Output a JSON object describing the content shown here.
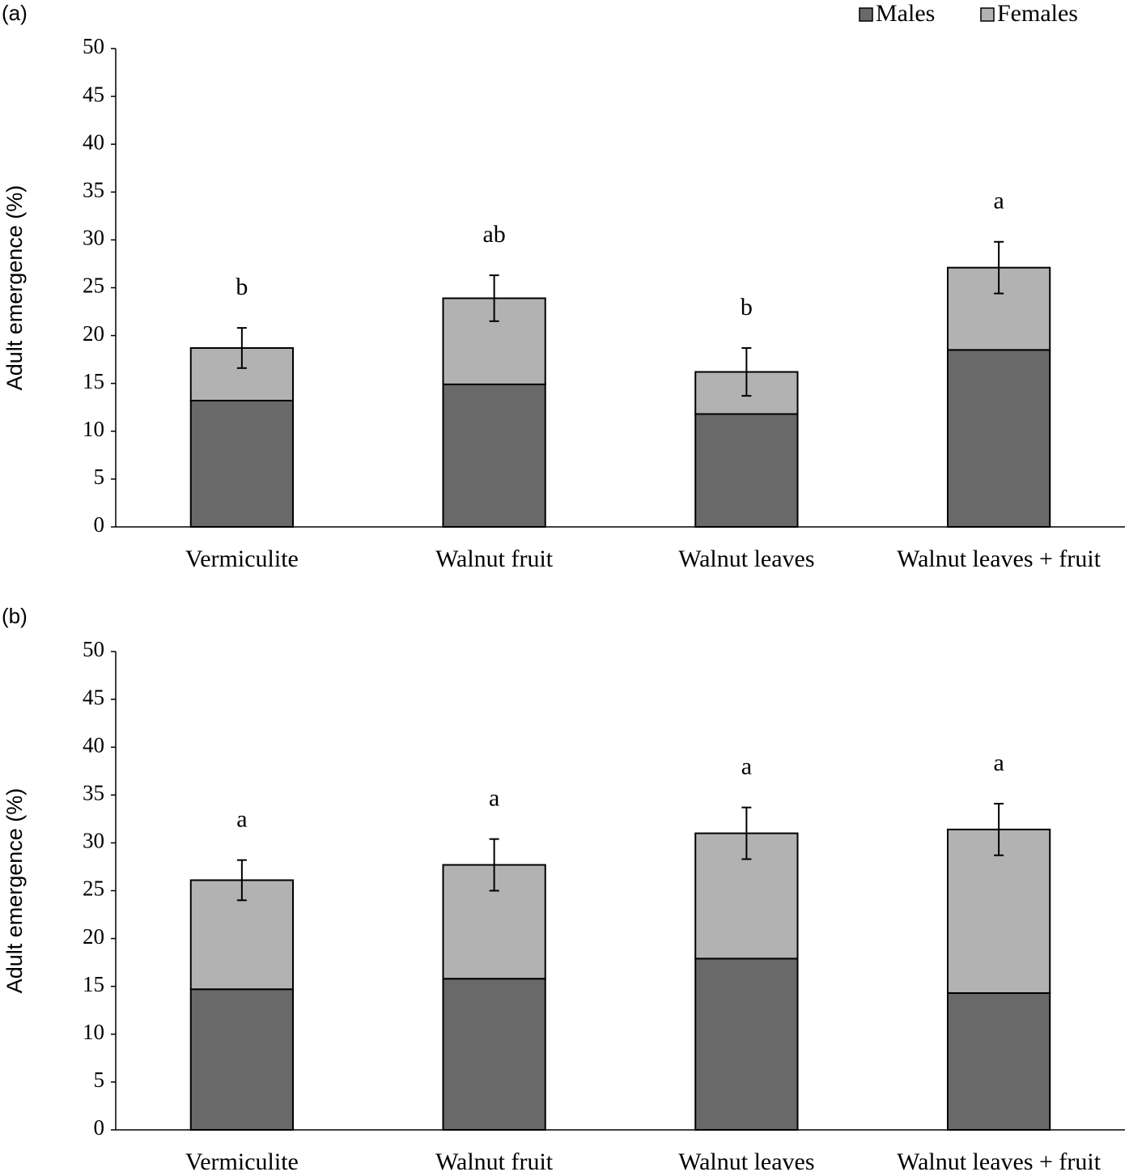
{
  "chart_data": [
    {
      "type": "stacked-bar",
      "panel_label": "(a)",
      "ylabel": "Adult emergence  (%)",
      "categories": [
        "Vermiculite",
        "Walnut fruit",
        "Walnut leaves",
        "Walnut leaves + fruit"
      ],
      "series": [
        {
          "name": "Males",
          "color": "#696969",
          "values": [
            13.2,
            14.9,
            11.8,
            18.5
          ]
        },
        {
          "name": "Females",
          "color": "#b2b2b2",
          "values": [
            5.5,
            9.0,
            4.4,
            8.6
          ]
        }
      ],
      "errors": [
        2.1,
        2.4,
        2.5,
        2.7
      ],
      "annotations": [
        "b",
        "ab",
        "b",
        "a"
      ],
      "ylim": [
        0,
        50
      ],
      "yticks": [
        0,
        5,
        10,
        15,
        20,
        25,
        30,
        35,
        40,
        45,
        50
      ],
      "legend": true,
      "legend_position": "top-right"
    },
    {
      "type": "stacked-bar",
      "panel_label": "(b)",
      "ylabel": "Adult emergence  (%)",
      "categories": [
        "Vermiculite",
        "Walnut fruit",
        "Walnut leaves",
        "Walnut leaves + fruit"
      ],
      "series": [
        {
          "name": "Males",
          "color": "#696969",
          "values": [
            14.7,
            15.8,
            17.9,
            14.3
          ]
        },
        {
          "name": "Females",
          "color": "#b2b2b2",
          "values": [
            11.4,
            11.9,
            13.1,
            17.1
          ]
        }
      ],
      "errors": [
        2.1,
        2.7,
        2.7,
        2.7
      ],
      "annotations": [
        "a",
        "a",
        "a",
        "a"
      ],
      "ylim": [
        0,
        50
      ],
      "yticks": [
        0,
        5,
        10,
        15,
        20,
        25,
        30,
        35,
        40,
        45,
        50
      ],
      "legend": false
    }
  ]
}
